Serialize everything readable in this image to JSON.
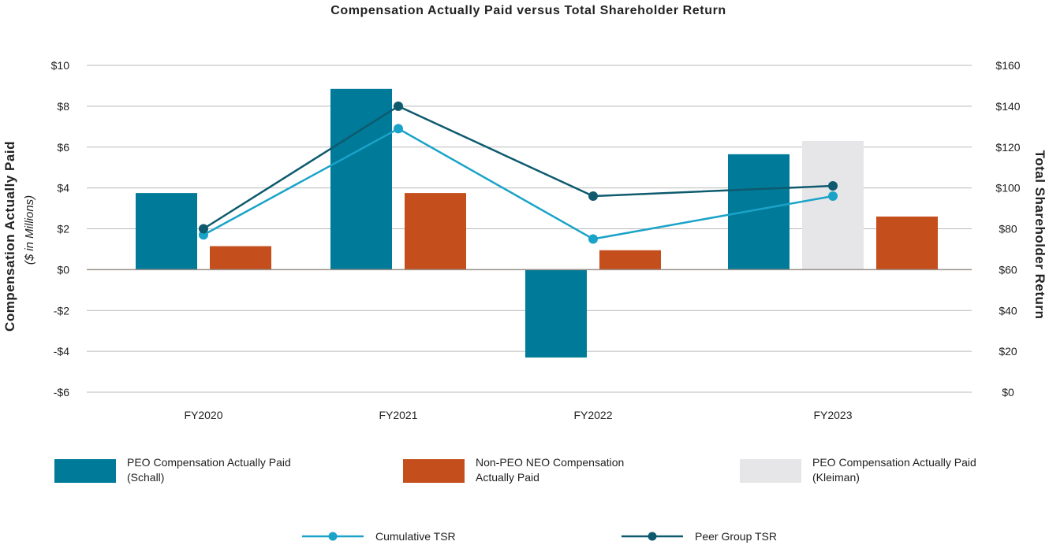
{
  "chart_data": {
    "type": "bar",
    "title": "Compensation Actually Paid versus Total Shareholder Return",
    "categories": [
      "FY2020",
      "FY2021",
      "FY2022",
      "FY2023"
    ],
    "ylabel": "Compensation Actually Paid",
    "ylabel_sub": "($ in Millions)",
    "y2label": "Total Shareholder Return",
    "ylim": [
      -6,
      10
    ],
    "y2lim": [
      0,
      160
    ],
    "y_ticks": [
      {
        "value": 10,
        "label": "$10"
      },
      {
        "value": 8,
        "label": "$8"
      },
      {
        "value": 6,
        "label": "$6"
      },
      {
        "value": 4,
        "label": "$4"
      },
      {
        "value": 2,
        "label": "$2"
      },
      {
        "value": 0,
        "label": "$0"
      },
      {
        "value": -2,
        "label": "-$2"
      },
      {
        "value": -4,
        "label": "-$4"
      },
      {
        "value": -6,
        "label": "-$6"
      }
    ],
    "y2_ticks": [
      {
        "value": 160,
        "label": "$160"
      },
      {
        "value": 140,
        "label": "$140"
      },
      {
        "value": 120,
        "label": "$120"
      },
      {
        "value": 100,
        "label": "$100"
      },
      {
        "value": 80,
        "label": "$80"
      },
      {
        "value": 60,
        "label": "$60"
      },
      {
        "value": 40,
        "label": "$40"
      },
      {
        "value": 20,
        "label": "$20"
      },
      {
        "value": 0,
        "label": "$0"
      }
    ],
    "grid": true,
    "bar_series": [
      {
        "name": "PEO Compensation Actually Paid (Schall)",
        "legend_lines": [
          "PEO Compensation Actually Paid",
          "(Schall)"
        ],
        "color": "#007a99",
        "values": [
          3.75,
          8.85,
          -4.3,
          5.65
        ]
      },
      {
        "name": "PEO Compensation Actually Paid (Kleiman)",
        "legend_lines": [
          "PEO Compensation Actually Paid",
          "(Kleiman)"
        ],
        "color": "#e6e6e8",
        "values": [
          null,
          null,
          null,
          6.3
        ]
      },
      {
        "name": "Non-PEO NEO Compensation Actually Paid",
        "legend_lines": [
          "Non-PEO NEO Compensation",
          "Actually Paid"
        ],
        "color": "#c44e1c",
        "values": [
          1.15,
          3.75,
          0.95,
          2.6
        ]
      }
    ],
    "line_series": [
      {
        "name": "Cumulative TSR",
        "color": "#1aa3c8",
        "axis": "right",
        "values": [
          77,
          129,
          75,
          96
        ]
      },
      {
        "name": "Peer Group TSR",
        "color": "#0e5a6e",
        "axis": "right",
        "values": [
          80,
          140,
          96,
          101
        ]
      }
    ]
  }
}
